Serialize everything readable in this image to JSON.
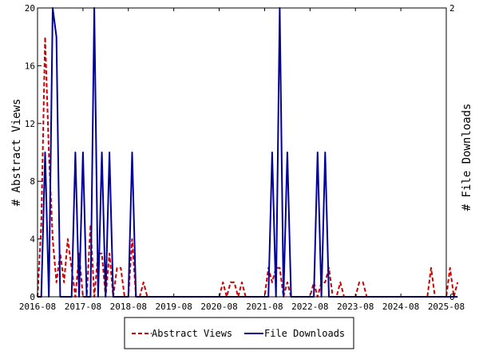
{
  "chart_data": {
    "type": "line",
    "title": "",
    "xlabel": "",
    "ylabel_left": "# Abstract Views",
    "ylabel_right": "# File Downloads",
    "ylim_left": [
      0,
      20
    ],
    "ylim_right": [
      0,
      2
    ],
    "yticks_left": [
      0,
      4,
      8,
      12,
      16,
      20
    ],
    "yticks_right": [
      0,
      2
    ],
    "x_ticks": [
      "2016-08",
      "2017-08",
      "2018-08",
      "2019-08",
      "2020-08",
      "2021-08",
      "2022-08",
      "2023-08",
      "2024-08",
      "2025-08"
    ],
    "grid": false,
    "legend_position": "bottom",
    "series": [
      {
        "name": "Abstract Views",
        "axis": "left",
        "color": "#cc0000",
        "style": "dashed",
        "points": [
          [
            "2016-08-01",
            0
          ],
          [
            "2016-09-01",
            5
          ],
          [
            "2016-10-01",
            18
          ],
          [
            "2016-11-01",
            10
          ],
          [
            "2016-12-01",
            4
          ],
          [
            "2017-01-01",
            1
          ],
          [
            "2017-02-01",
            3
          ],
          [
            "2017-03-01",
            1
          ],
          [
            "2017-04-01",
            4
          ],
          [
            "2017-05-01",
            2
          ],
          [
            "2017-06-01",
            0
          ],
          [
            "2017-07-01",
            3
          ],
          [
            "2017-08-01",
            0
          ],
          [
            "2017-09-01",
            0
          ],
          [
            "2017-10-01",
            5
          ],
          [
            "2017-11-01",
            0
          ],
          [
            "2017-12-01",
            3
          ],
          [
            "2018-01-01",
            3
          ],
          [
            "2018-02-01",
            0
          ],
          [
            "2018-03-01",
            3
          ],
          [
            "2018-04-01",
            0
          ],
          [
            "2018-05-01",
            2
          ],
          [
            "2018-06-01",
            2
          ],
          [
            "2018-07-01",
            0
          ],
          [
            "2018-08-01",
            0
          ],
          [
            "2018-09-01",
            4
          ],
          [
            "2018-10-01",
            0
          ],
          [
            "2018-11-01",
            0
          ],
          [
            "2018-12-01",
            1
          ],
          [
            "2019-01-01",
            0
          ],
          [
            "2019-08-01",
            0
          ],
          [
            "2020-08-01",
            0
          ],
          [
            "2020-09-01",
            1
          ],
          [
            "2020-10-01",
            0
          ],
          [
            "2020-11-01",
            1
          ],
          [
            "2020-12-01",
            1
          ],
          [
            "2021-01-01",
            0
          ],
          [
            "2021-02-01",
            1
          ],
          [
            "2021-03-01",
            0
          ],
          [
            "2021-08-01",
            0
          ],
          [
            "2021-09-01",
            2
          ],
          [
            "2021-10-01",
            1
          ],
          [
            "2021-11-01",
            2
          ],
          [
            "2021-12-01",
            2
          ],
          [
            "2022-01-01",
            0
          ],
          [
            "2022-02-01",
            1
          ],
          [
            "2022-03-01",
            0
          ],
          [
            "2022-08-01",
            0
          ],
          [
            "2022-09-01",
            1
          ],
          [
            "2022-10-01",
            0
          ],
          [
            "2022-11-01",
            1
          ],
          [
            "2022-12-01",
            1
          ],
          [
            "2023-01-01",
            2
          ],
          [
            "2023-02-01",
            0
          ],
          [
            "2023-03-01",
            0
          ],
          [
            "2023-04-01",
            1
          ],
          [
            "2023-05-01",
            0
          ],
          [
            "2023-08-01",
            0
          ],
          [
            "2023-09-01",
            1
          ],
          [
            "2023-10-01",
            1
          ],
          [
            "2023-11-01",
            0
          ],
          [
            "2024-08-01",
            0
          ],
          [
            "2025-03-01",
            0
          ],
          [
            "2025-04-01",
            2
          ],
          [
            "2025-05-01",
            0
          ],
          [
            "2025-08-01",
            0
          ],
          [
            "2025-09-01",
            2
          ],
          [
            "2025-10-01",
            0
          ],
          [
            "2025-11-01",
            1
          ]
        ]
      },
      {
        "name": "File Downloads",
        "axis": "right",
        "color": "#000099",
        "style": "solid",
        "points": [
          [
            "2016-08-01",
            0
          ],
          [
            "2016-09-01",
            0
          ],
          [
            "2016-10-01",
            1
          ],
          [
            "2016-11-01",
            0
          ],
          [
            "2016-12-01",
            2
          ],
          [
            "2017-01-01",
            1.8
          ],
          [
            "2017-02-01",
            0
          ],
          [
            "2017-03-01",
            0
          ],
          [
            "2017-04-01",
            0
          ],
          [
            "2017-05-01",
            0
          ],
          [
            "2017-06-01",
            1
          ],
          [
            "2017-07-01",
            0
          ],
          [
            "2017-08-01",
            1
          ],
          [
            "2017-09-01",
            0
          ],
          [
            "2017-10-01",
            0
          ],
          [
            "2017-11-01",
            2
          ],
          [
            "2017-12-01",
            0
          ],
          [
            "2018-01-01",
            1
          ],
          [
            "2018-02-01",
            0
          ],
          [
            "2018-03-01",
            1
          ],
          [
            "2018-04-01",
            0
          ],
          [
            "2018-05-01",
            0
          ],
          [
            "2018-06-01",
            0
          ],
          [
            "2018-07-01",
            0
          ],
          [
            "2018-08-01",
            0
          ],
          [
            "2018-09-01",
            1
          ],
          [
            "2018-10-01",
            0
          ],
          [
            "2018-11-01",
            0
          ],
          [
            "2019-08-01",
            0
          ],
          [
            "2020-08-01",
            0
          ],
          [
            "2021-08-01",
            0
          ],
          [
            "2021-09-01",
            0
          ],
          [
            "2021-10-01",
            1
          ],
          [
            "2021-11-01",
            0
          ],
          [
            "2021-12-01",
            2
          ],
          [
            "2022-01-01",
            0
          ],
          [
            "2022-02-01",
            1
          ],
          [
            "2022-03-01",
            0
          ],
          [
            "2022-08-01",
            0
          ],
          [
            "2022-09-01",
            0
          ],
          [
            "2022-10-01",
            1
          ],
          [
            "2022-11-01",
            0
          ],
          [
            "2022-12-01",
            1
          ],
          [
            "2023-01-01",
            0
          ],
          [
            "2023-08-01",
            0
          ],
          [
            "2024-08-01",
            0
          ],
          [
            "2025-08-01",
            0
          ],
          [
            "2025-11-01",
            0
          ]
        ]
      }
    ]
  }
}
